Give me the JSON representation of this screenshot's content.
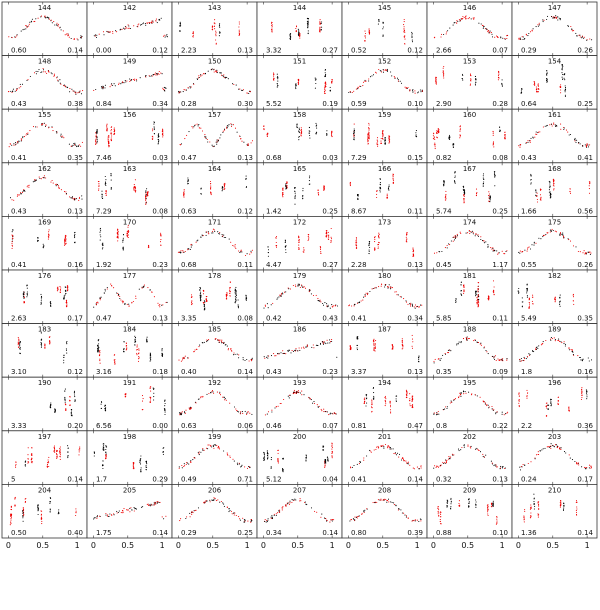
{
  "chart_data": {
    "type": "scatter",
    "layout": "small-multiples",
    "rows": 10,
    "cols": 7,
    "x_tick_labels": [
      "0",
      "0.5",
      "1"
    ],
    "x_ticks": [
      0,
      0.5,
      1
    ],
    "xlim": [
      -0.05,
      1.1
    ],
    "series_colors": {
      "primary": "#000000",
      "secondary": "#ee0000"
    },
    "panels": [
      {
        "id": "144",
        "left": "0.60",
        "right": "0.14",
        "s": "s"
      },
      {
        "id": "142",
        "left": "0.00",
        "right": "0.12",
        "s": "r"
      },
      {
        "id": "143",
        "left": "2.23",
        "right": "0.13",
        "s": "c"
      },
      {
        "id": "144",
        "left": "3.32",
        "right": "0.27",
        "s": "c"
      },
      {
        "id": "145",
        "left": "0.52",
        "right": "0.12",
        "s": "c"
      },
      {
        "id": "146",
        "left": "2.66",
        "right": "0.07",
        "s": "s"
      },
      {
        "id": "147",
        "left": "0.29",
        "right": "0.26",
        "s": "s"
      },
      {
        "id": "148",
        "left": "0.43",
        "right": "0.38",
        "s": "s"
      },
      {
        "id": "149",
        "left": "0.84",
        "right": "0.34",
        "s": "r"
      },
      {
        "id": "150",
        "left": "0.28",
        "right": "0.30",
        "s": "s"
      },
      {
        "id": "151",
        "left": "5.52",
        "right": "0.19",
        "s": "c"
      },
      {
        "id": "152",
        "left": "0.59",
        "right": "0.10",
        "s": "s"
      },
      {
        "id": "153",
        "left": "2.90",
        "right": "0.28",
        "s": "c"
      },
      {
        "id": "154",
        "left": "0.64",
        "right": "0.25",
        "s": "c"
      },
      {
        "id": "155",
        "left": "0.41",
        "right": "0.35",
        "s": "s"
      },
      {
        "id": "156",
        "left": "7.46",
        "right": "0.03",
        "s": "c"
      },
      {
        "id": "157",
        "left": "0.47",
        "right": "0.13",
        "s": "d"
      },
      {
        "id": "158",
        "left": "0.68",
        "right": "0.03",
        "s": "c"
      },
      {
        "id": "159",
        "left": "7.29",
        "right": "0.15",
        "s": "c"
      },
      {
        "id": "160",
        "left": "0.82",
        "right": "0.08",
        "s": "c"
      },
      {
        "id": "161",
        "left": "0.43",
        "right": "0.41",
        "s": "s"
      },
      {
        "id": "162",
        "left": "0.43",
        "right": "0.13",
        "s": "s"
      },
      {
        "id": "163",
        "left": "7.29",
        "right": "0.08",
        "s": "c"
      },
      {
        "id": "164",
        "left": "0.63",
        "right": "0.12",
        "s": "c"
      },
      {
        "id": "165",
        "left": "1.42",
        "right": "0.25",
        "s": "c"
      },
      {
        "id": "166",
        "left": "8.67",
        "right": "0.11",
        "s": "c"
      },
      {
        "id": "167",
        "left": "5.74",
        "right": "0.25",
        "s": "c"
      },
      {
        "id": "168",
        "left": "1.66",
        "right": "0.56",
        "s": "c"
      },
      {
        "id": "169",
        "left": "0.41",
        "right": "0.16",
        "s": "c"
      },
      {
        "id": "170",
        "left": "1.92",
        "right": "0.23",
        "s": "c"
      },
      {
        "id": "171",
        "left": "0.68",
        "right": "0.11",
        "s": "s"
      },
      {
        "id": "172",
        "left": "4.47",
        "right": "0.27",
        "s": "c"
      },
      {
        "id": "173",
        "left": "2.28",
        "right": "0.13",
        "s": "c"
      },
      {
        "id": "174",
        "left": "0.45",
        "right": "1.17",
        "s": "s"
      },
      {
        "id": "175",
        "left": "0.55",
        "right": "0.26",
        "s": "s"
      },
      {
        "id": "176",
        "left": "2.63",
        "right": "0.17",
        "s": "c"
      },
      {
        "id": "177",
        "left": "0.47",
        "right": "0.13",
        "s": "d"
      },
      {
        "id": "178",
        "left": "3.35",
        "right": "0.08",
        "s": "c"
      },
      {
        "id": "179",
        "left": "0.42",
        "right": "0.43",
        "s": "s"
      },
      {
        "id": "180",
        "left": "0.41",
        "right": "0.34",
        "s": "s"
      },
      {
        "id": "181",
        "left": "5.85",
        "right": "0.11",
        "s": "c"
      },
      {
        "id": "182",
        "left": "5.49",
        "right": "0.35",
        "s": "c"
      },
      {
        "id": "183",
        "left": "3.10",
        "right": "0.12",
        "s": "c"
      },
      {
        "id": "184",
        "left": "3.16",
        "right": "0.18",
        "s": "c"
      },
      {
        "id": "185",
        "left": "0.40",
        "right": "0.14",
        "s": "s"
      },
      {
        "id": "186",
        "left": "0.43",
        "right": "0.23",
        "s": "r"
      },
      {
        "id": "187",
        "left": "3.37",
        "right": "0.13",
        "s": "c"
      },
      {
        "id": "188",
        "left": "0.35",
        "right": "0.09",
        "s": "s"
      },
      {
        "id": "189",
        "left": "1.8",
        "right": "0.16",
        "s": "s"
      },
      {
        "id": "190",
        "left": "3.33",
        "right": "0.20",
        "s": "c"
      },
      {
        "id": "191",
        "left": "6.56",
        "right": "0.00",
        "s": "c"
      },
      {
        "id": "192",
        "left": "0.63",
        "right": "0.06",
        "s": "s"
      },
      {
        "id": "193",
        "left": "0.46",
        "right": "0.07",
        "s": "s"
      },
      {
        "id": "194",
        "left": "0.81",
        "right": "0.47",
        "s": "c"
      },
      {
        "id": "195",
        "left": "0.8",
        "right": "0.22",
        "s": "s"
      },
      {
        "id": "196",
        "left": "2.2",
        "right": "0.36",
        "s": "c"
      },
      {
        "id": "197",
        "left": "5",
        "right": "0.14",
        "s": "c"
      },
      {
        "id": "198",
        "left": "1.7",
        "right": "0.29",
        "s": "c"
      },
      {
        "id": "199",
        "left": "0.49",
        "right": "0.71",
        "s": "s"
      },
      {
        "id": "200",
        "left": "5.12",
        "right": "0.04",
        "s": "c"
      },
      {
        "id": "201",
        "left": "0.41",
        "right": "0.14",
        "s": "s"
      },
      {
        "id": "202",
        "left": "0.32",
        "right": "0.13",
        "s": "s"
      },
      {
        "id": "203",
        "left": "0.24",
        "right": "0.17",
        "s": "s"
      },
      {
        "id": "204",
        "left": "0.50",
        "right": "0.40",
        "s": "c"
      },
      {
        "id": "205",
        "left": "1.75",
        "right": "0.14",
        "s": "r"
      },
      {
        "id": "206",
        "left": "0.29",
        "right": "0.25",
        "s": "s"
      },
      {
        "id": "207",
        "left": "0.34",
        "right": "0.14",
        "s": "s"
      },
      {
        "id": "208",
        "left": "0.80",
        "right": "0.39",
        "s": "s"
      },
      {
        "id": "209",
        "left": "0.88",
        "right": "0.10",
        "s": "c"
      },
      {
        "id": "210",
        "left": "1.36",
        "right": "0.14",
        "s": "c"
      }
    ]
  }
}
